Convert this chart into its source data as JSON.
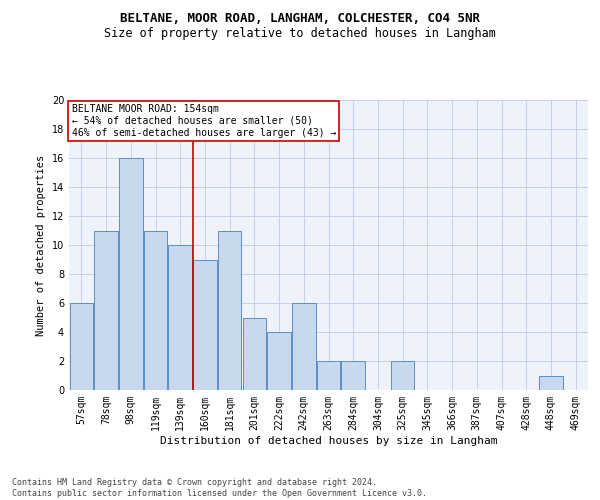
{
  "title1": "BELTANE, MOOR ROAD, LANGHAM, COLCHESTER, CO4 5NR",
  "title2": "Size of property relative to detached houses in Langham",
  "xlabel": "Distribution of detached houses by size in Langham",
  "ylabel": "Number of detached properties",
  "categories": [
    "57sqm",
    "78sqm",
    "98sqm",
    "119sqm",
    "139sqm",
    "160sqm",
    "181sqm",
    "201sqm",
    "222sqm",
    "242sqm",
    "263sqm",
    "284sqm",
    "304sqm",
    "325sqm",
    "345sqm",
    "366sqm",
    "387sqm",
    "407sqm",
    "428sqm",
    "448sqm",
    "469sqm"
  ],
  "values": [
    6,
    11,
    16,
    11,
    10,
    9,
    11,
    5,
    4,
    6,
    2,
    2,
    0,
    2,
    0,
    0,
    0,
    0,
    0,
    1,
    0
  ],
  "bar_color": "#c8d8ed",
  "bar_edge_color": "#5b8fc9",
  "grid_color": "#c5d0e8",
  "background_color": "#eef2fb",
  "vline_color": "#cc0000",
  "vline_x_index": 4.5,
  "annotation_text": "BELTANE MOOR ROAD: 154sqm\n← 54% of detached houses are smaller (50)\n46% of semi-detached houses are larger (43) →",
  "annotation_box_facecolor": "#ffffff",
  "annotation_box_edgecolor": "#cc0000",
  "ylim": [
    0,
    20
  ],
  "yticks": [
    0,
    2,
    4,
    6,
    8,
    10,
    12,
    14,
    16,
    18,
    20
  ],
  "footer": "Contains HM Land Registry data © Crown copyright and database right 2024.\nContains public sector information licensed under the Open Government Licence v3.0.",
  "title1_fontsize": 9,
  "title2_fontsize": 8.5,
  "ylabel_fontsize": 7.5,
  "xlabel_fontsize": 8,
  "tick_fontsize": 7,
  "ann_fontsize": 7,
  "footer_fontsize": 6
}
